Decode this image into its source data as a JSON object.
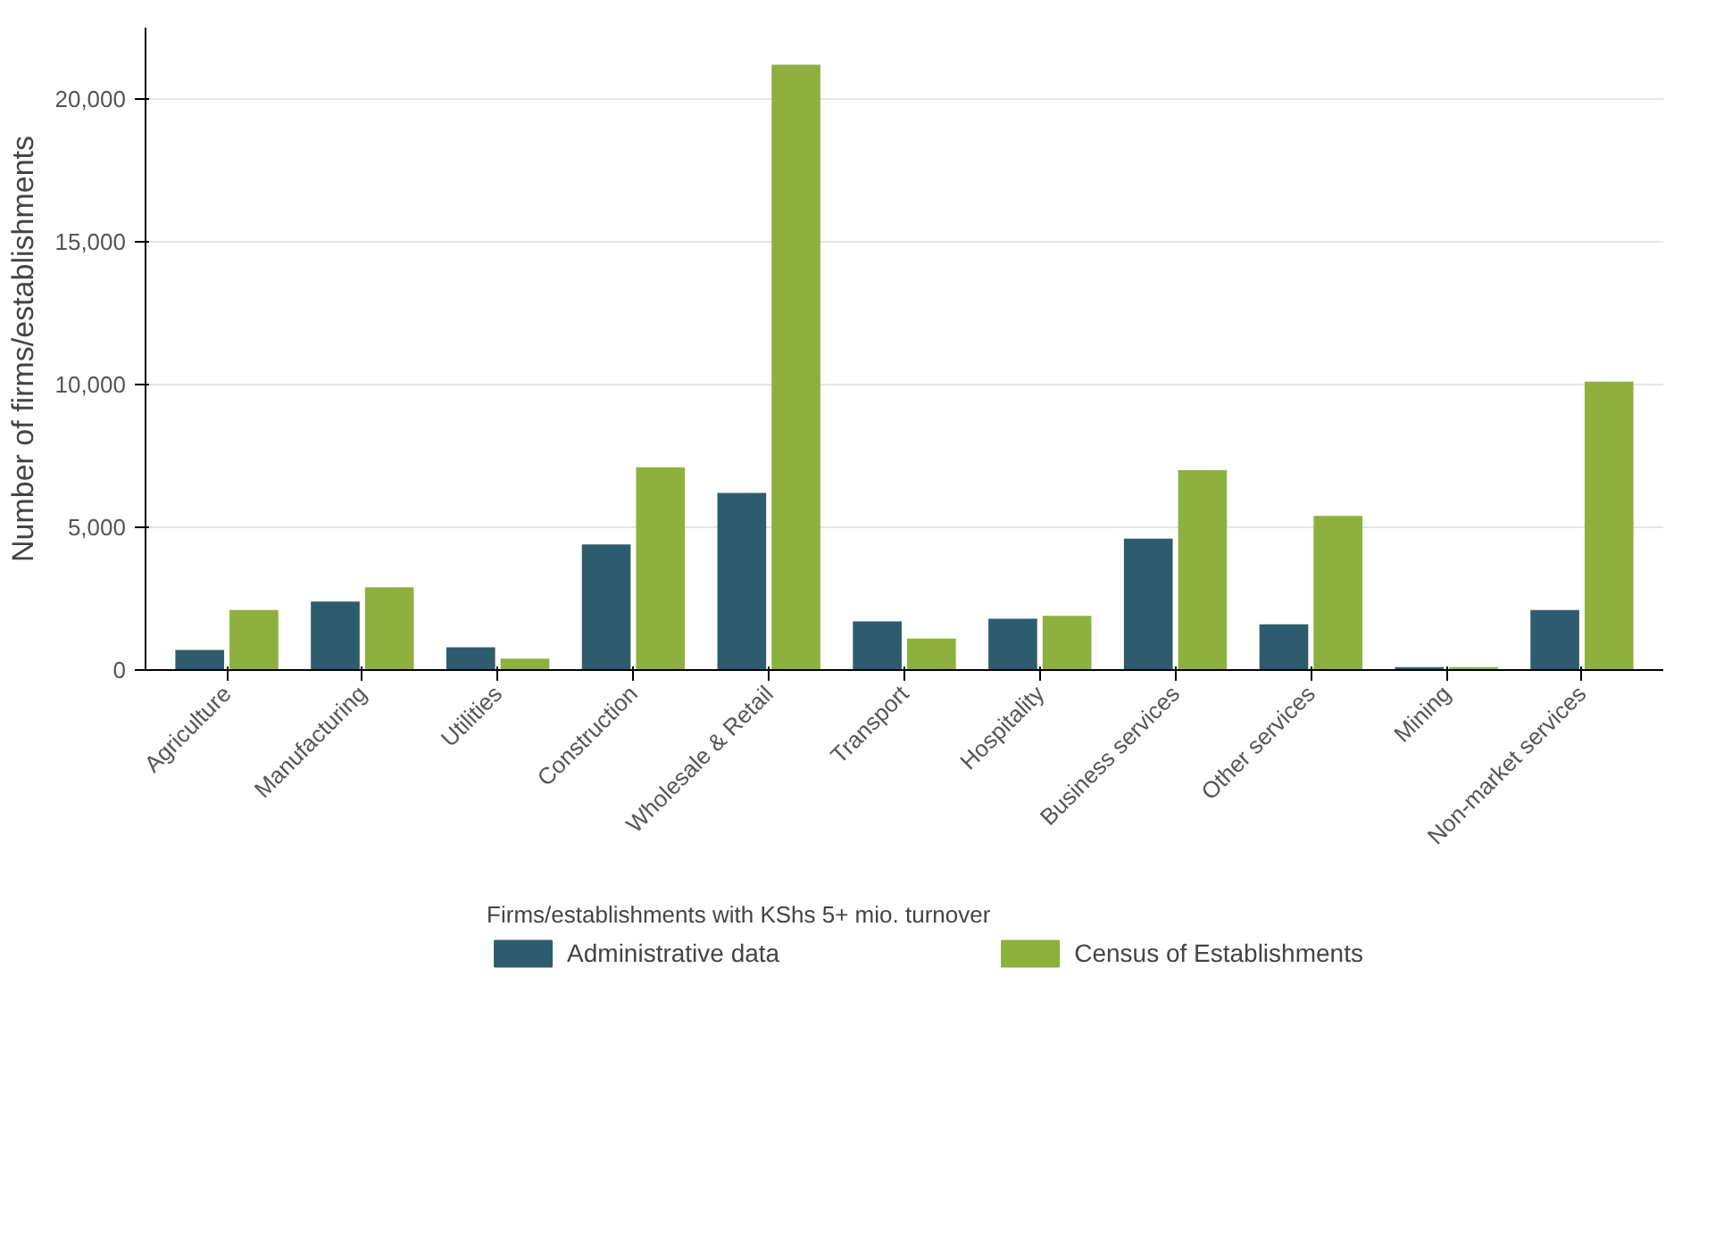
{
  "chart_data": {
    "type": "bar",
    "ylabel": "Number of firms/establishments",
    "legend_title": "Firms/establishments with KShs 5+ mio. turnover",
    "categories": [
      "Agriculture",
      "Manufacturing",
      "Utilities",
      "Construction",
      "Wholesale & Retail",
      "Transport",
      "Hospitality",
      "Business services",
      "Other services",
      "Mining",
      "Non-market services"
    ],
    "series": [
      {
        "name": "Administrative data",
        "color": "#2e5c6e",
        "values": [
          700,
          2400,
          800,
          4400,
          6200,
          1700,
          1800,
          4600,
          1600,
          100,
          2100
        ]
      },
      {
        "name": "Census of Establishments",
        "color": "#8db03e",
        "values": [
          2100,
          2900,
          400,
          7100,
          21200,
          1100,
          1900,
          7000,
          5400,
          100,
          10100
        ]
      }
    ],
    "ylim": [
      0,
      22500
    ],
    "yticks": [
      {
        "value": 0,
        "label": "0"
      },
      {
        "value": 5000,
        "label": "5,000"
      },
      {
        "value": 10000,
        "label": "10,000"
      },
      {
        "value": 15000,
        "label": "15,000"
      },
      {
        "value": 20000,
        "label": "20,000"
      }
    ],
    "grid": "y",
    "legend": "bottom"
  }
}
